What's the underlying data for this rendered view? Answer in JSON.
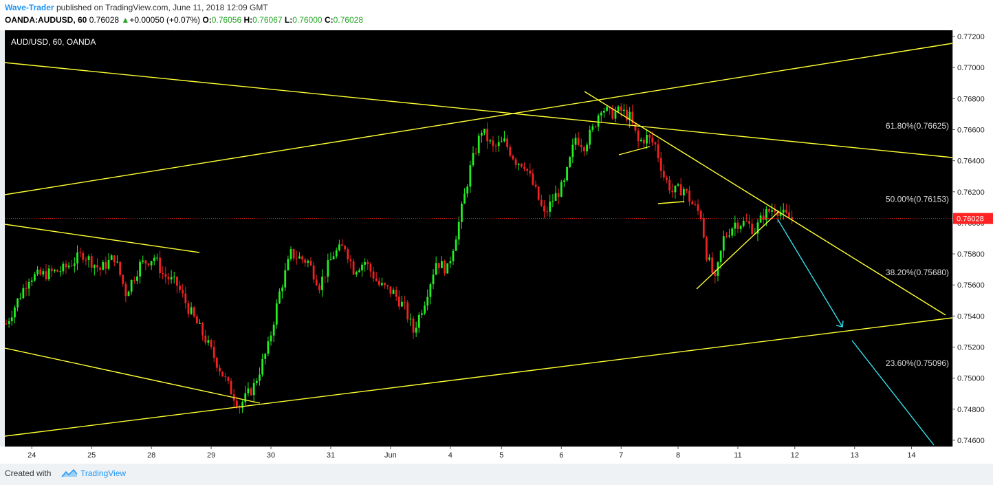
{
  "header": {
    "author": "Wave-Trader",
    "published": "published on TradingView.com, June 11, 2018 12:09 GMT",
    "symbol": "OANDA:AUDUSD, 60",
    "last": "0.76028",
    "arrow": "▲",
    "change": "+0.00050 (+0.07%)",
    "o_label": "O:",
    "o_value": "0.76056",
    "h_label": "H:",
    "h_value": "0.76067",
    "l_label": "L:",
    "l_value": "0.76000",
    "c_label": "C:",
    "c_value": "0.76028"
  },
  "footer": {
    "created_with": "Created with",
    "brand": "TradingView"
  },
  "colors": {
    "background": "#000000",
    "up": "#22ee22",
    "down": "#ee2222",
    "trendline": "#ffff33",
    "projection": "#33e0f0",
    "price_line": "#ff2222"
  },
  "chart_data": {
    "type": "candlestick",
    "title": "AUD/USD, 60, OANDA",
    "x_ticks": [
      "24",
      "25",
      "28",
      "29",
      "30",
      "31",
      "Jun",
      "4",
      "5",
      "6",
      "7",
      "8",
      "11",
      "12",
      "13",
      "14"
    ],
    "y_ticks": [
      "0.77200",
      "0.77000",
      "0.76800",
      "0.76600",
      "0.76400",
      "0.76200",
      "0.76000",
      "0.75800",
      "0.75600",
      "0.75400",
      "0.75200",
      "0.75000",
      "0.74800",
      "0.74600"
    ],
    "ylim": [
      0.7456,
      0.7724
    ],
    "current_price": "0.76028",
    "fib_levels": [
      {
        "label": "61.80%(0.76625)",
        "price": 0.76625
      },
      {
        "label": "50.00%(0.76153)",
        "price": 0.76153
      },
      {
        "label": "38.20%(0.75680)",
        "price": 0.7568
      },
      {
        "label": "23.60%(0.75096)",
        "price": 0.75096
      }
    ],
    "price_path": [
      [
        0,
        0.7535
      ],
      [
        8,
        0.7565
      ],
      [
        14,
        0.7567
      ],
      [
        20,
        0.757
      ],
      [
        27,
        0.758
      ],
      [
        33,
        0.757
      ],
      [
        38,
        0.7578
      ],
      [
        42,
        0.7555
      ],
      [
        47,
        0.7573
      ],
      [
        52,
        0.7578
      ],
      [
        55,
        0.7567
      ],
      [
        60,
        0.756
      ],
      [
        64,
        0.7545
      ],
      [
        70,
        0.7525
      ],
      [
        74,
        0.751
      ],
      [
        78,
        0.7495
      ],
      [
        82,
        0.7482
      ],
      [
        87,
        0.7495
      ],
      [
        92,
        0.752
      ],
      [
        96,
        0.7555
      ],
      [
        100,
        0.758
      ],
      [
        106,
        0.7575
      ],
      [
        110,
        0.756
      ],
      [
        115,
        0.758
      ],
      [
        119,
        0.7585
      ],
      [
        122,
        0.757
      ],
      [
        126,
        0.7575
      ],
      [
        131,
        0.756
      ],
      [
        136,
        0.7555
      ],
      [
        140,
        0.7545
      ],
      [
        143,
        0.753
      ],
      [
        147,
        0.755
      ],
      [
        151,
        0.7575
      ],
      [
        155,
        0.757
      ],
      [
        159,
        0.76
      ],
      [
        163,
        0.7635
      ],
      [
        167,
        0.766
      ],
      [
        171,
        0.7648
      ],
      [
        175,
        0.7652
      ],
      [
        179,
        0.764
      ],
      [
        182,
        0.7638
      ],
      [
        186,
        0.762
      ],
      [
        189,
        0.7605
      ],
      [
        192,
        0.7615
      ],
      [
        196,
        0.7625
      ],
      [
        200,
        0.7655
      ],
      [
        203,
        0.765
      ],
      [
        206,
        0.766
      ],
      [
        209,
        0.7675
      ],
      [
        212,
        0.767
      ],
      [
        216,
        0.7672
      ],
      [
        219,
        0.7668
      ],
      [
        222,
        0.7652
      ],
      [
        225,
        0.7655
      ],
      [
        228,
        0.765
      ],
      [
        231,
        0.763
      ],
      [
        234,
        0.762
      ],
      [
        238,
        0.7622
      ],
      [
        241,
        0.7612
      ],
      [
        244,
        0.7605
      ],
      [
        246,
        0.758
      ],
      [
        249,
        0.7562
      ],
      [
        252,
        0.759
      ],
      [
        256,
        0.76
      ],
      [
        260,
        0.76
      ],
      [
        263,
        0.7595
      ],
      [
        266,
        0.7605
      ],
      [
        270,
        0.761
      ],
      [
        273,
        0.7605
      ],
      [
        276,
        0.76028
      ]
    ]
  }
}
